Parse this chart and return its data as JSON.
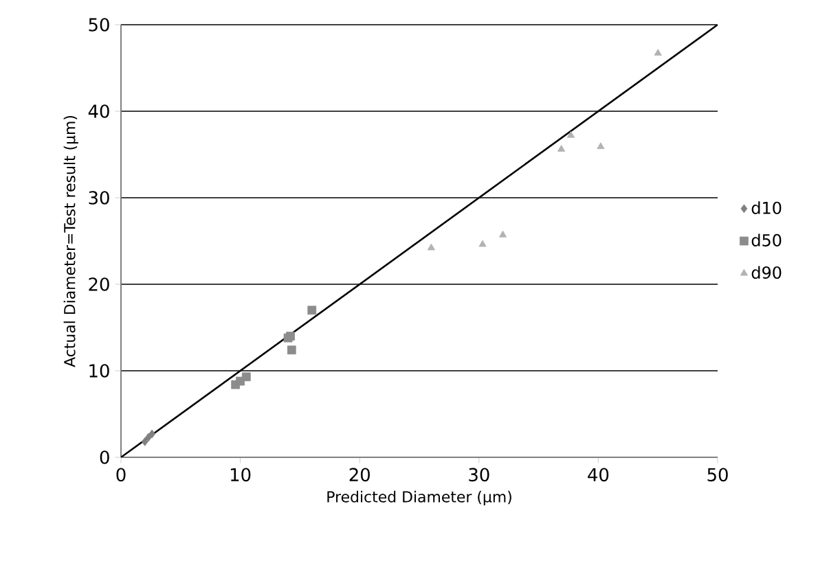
{
  "chart_data": {
    "type": "scatter",
    "xlabel": "Predicted Diameter (μm)",
    "ylabel": "Actual Diameter=Test result (μm)",
    "xlim": [
      0,
      50
    ],
    "ylim": [
      0,
      50
    ],
    "xticks": [
      0,
      10,
      20,
      30,
      40,
      50
    ],
    "yticks": [
      0,
      10,
      20,
      30,
      40,
      50
    ],
    "grid": "y",
    "legend": "right",
    "series": [
      {
        "name": "d10",
        "color": "#808080",
        "marker": "diamond",
        "x": [
          2.0,
          2.3,
          2.6
        ],
        "values": [
          1.8,
          2.3,
          2.7
        ]
      },
      {
        "name": "d50",
        "color": "#8c8c8c",
        "marker": "square",
        "x": [
          9.6,
          10.0,
          10.5,
          14.0,
          14.2,
          14.3,
          16.0
        ],
        "values": [
          8.4,
          8.8,
          9.3,
          13.8,
          14.0,
          12.4,
          17.0
        ]
      },
      {
        "name": "d90",
        "color": "#b3b3b3",
        "marker": "triangle",
        "x": [
          26.0,
          30.3,
          32.0,
          36.9,
          37.7,
          40.2,
          45.0
        ],
        "values": [
          24.2,
          24.6,
          25.7,
          35.6,
          37.2,
          35.9,
          46.7
        ]
      },
      {
        "type": "line",
        "color": "#000000",
        "marker": "none",
        "x": [
          0,
          50
        ],
        "values": [
          0,
          50
        ]
      }
    ]
  }
}
